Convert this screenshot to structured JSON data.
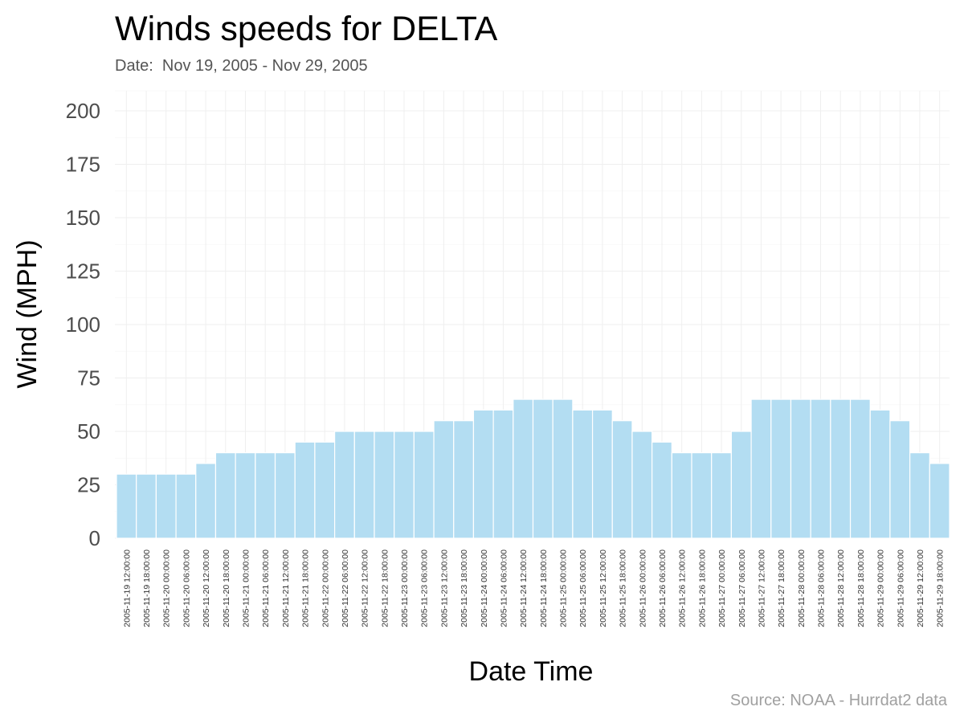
{
  "header": {
    "title": "Winds speeds for DELTA",
    "subtitle": "Date:  Nov 19, 2005 - Nov 29, 2005"
  },
  "footer": {
    "caption": "Source: NOAA - Hurrdat2 data"
  },
  "colors": {
    "bar_fill": "#b3ddf2",
    "bar_edge": "#ffffff",
    "grid": "#efefef",
    "tick_text": "#4d4d4d",
    "axis_title": "#000000"
  },
  "chart_data": {
    "type": "bar",
    "xlabel": "Date Time",
    "ylabel": "Wind (MPH)",
    "ylim": [
      0,
      200
    ],
    "yticks": [
      0,
      25,
      50,
      75,
      100,
      125,
      150,
      175,
      200
    ],
    "grid": true,
    "legend": "none",
    "categories": [
      "2005-11-19 12:00:00",
      "2005-11-19 18:00:00",
      "2005-11-20 00:00:00",
      "2005-11-20 06:00:00",
      "2005-11-20 12:00:00",
      "2005-11-20 18:00:00",
      "2005-11-21 00:00:00",
      "2005-11-21 06:00:00",
      "2005-11-21 12:00:00",
      "2005-11-21 18:00:00",
      "2005-11-22 00:00:00",
      "2005-11-22 06:00:00",
      "2005-11-22 12:00:00",
      "2005-11-22 18:00:00",
      "2005-11-23 00:00:00",
      "2005-11-23 06:00:00",
      "2005-11-23 12:00:00",
      "2005-11-23 18:00:00",
      "2005-11-24 00:00:00",
      "2005-11-24 06:00:00",
      "2005-11-24 12:00:00",
      "2005-11-24 18:00:00",
      "2005-11-25 00:00:00",
      "2005-11-25 06:00:00",
      "2005-11-25 12:00:00",
      "2005-11-25 18:00:00",
      "2005-11-26 00:00:00",
      "2005-11-26 06:00:00",
      "2005-11-26 12:00:00",
      "2005-11-26 18:00:00",
      "2005-11-27 00:00:00",
      "2005-11-27 06:00:00",
      "2005-11-27 12:00:00",
      "2005-11-27 18:00:00",
      "2005-11-28 00:00:00",
      "2005-11-28 06:00:00",
      "2005-11-28 12:00:00",
      "2005-11-28 18:00:00",
      "2005-11-29 00:00:00",
      "2005-11-29 06:00:00",
      "2005-11-29 12:00:00",
      "2005-11-29 18:00:00"
    ],
    "values": [
      30,
      30,
      30,
      30,
      35,
      40,
      40,
      40,
      40,
      45,
      45,
      50,
      50,
      50,
      50,
      50,
      55,
      55,
      60,
      60,
      65,
      65,
      65,
      60,
      60,
      55,
      50,
      45,
      40,
      40,
      40,
      50,
      65,
      65,
      65,
      65,
      65,
      65,
      60,
      55,
      40,
      35
    ]
  }
}
